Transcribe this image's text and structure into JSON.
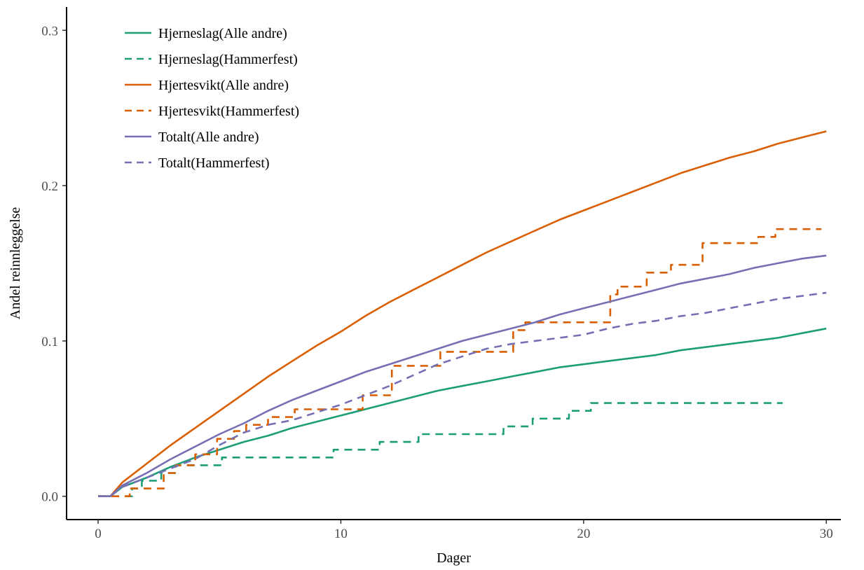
{
  "chart_data": {
    "type": "line",
    "xlabel": "Dager",
    "ylabel": "Andel reinnleggelse",
    "xlim": [
      -1.3,
      30.6
    ],
    "ylim": [
      -0.015,
      0.315
    ],
    "xticks": [
      0,
      10,
      20,
      30
    ],
    "xtick_labels": [
      "0",
      "10",
      "20",
      "30"
    ],
    "yticks": [
      0.0,
      0.1,
      0.2,
      0.3
    ],
    "ytick_labels": [
      "0.0",
      "0.1",
      "0.2",
      "0.3"
    ],
    "grid": false,
    "legend_position": "top-left",
    "series": [
      {
        "name": "Hjerneslag(Alle andre)",
        "color": "#1b9e77",
        "dash": "solid",
        "step": false,
        "points": [
          [
            0,
            0
          ],
          [
            0.5,
            0
          ],
          [
            1,
            0.006
          ],
          [
            2,
            0.012
          ],
          [
            3,
            0.019
          ],
          [
            4,
            0.025
          ],
          [
            5,
            0.03
          ],
          [
            6,
            0.035
          ],
          [
            7,
            0.039
          ],
          [
            8,
            0.044
          ],
          [
            9,
            0.048
          ],
          [
            10,
            0.052
          ],
          [
            11,
            0.056
          ],
          [
            12,
            0.06
          ],
          [
            13,
            0.064
          ],
          [
            14,
            0.068
          ],
          [
            15,
            0.071
          ],
          [
            16,
            0.074
          ],
          [
            17,
            0.077
          ],
          [
            18,
            0.08
          ],
          [
            19,
            0.083
          ],
          [
            20,
            0.085
          ],
          [
            21,
            0.087
          ],
          [
            22,
            0.089
          ],
          [
            23,
            0.091
          ],
          [
            24,
            0.094
          ],
          [
            25,
            0.096
          ],
          [
            26,
            0.098
          ],
          [
            27,
            0.1
          ],
          [
            28,
            0.102
          ],
          [
            29,
            0.105
          ],
          [
            30,
            0.108
          ]
        ]
      },
      {
        "name": "Hjerneslag(Hammerfest)",
        "color": "#1b9e77",
        "dash": "dashed",
        "step": true,
        "points": [
          [
            0,
            0
          ],
          [
            1.4,
            0
          ],
          [
            1.4,
            0.005
          ],
          [
            1.8,
            0.005
          ],
          [
            1.8,
            0.01
          ],
          [
            2.6,
            0.01
          ],
          [
            2.6,
            0.015
          ],
          [
            3.2,
            0.015
          ],
          [
            3.2,
            0.02
          ],
          [
            5.1,
            0.02
          ],
          [
            5.1,
            0.025
          ],
          [
            9.7,
            0.025
          ],
          [
            9.7,
            0.03
          ],
          [
            11.6,
            0.03
          ],
          [
            11.6,
            0.035
          ],
          [
            13.2,
            0.035
          ],
          [
            13.2,
            0.04
          ],
          [
            16.7,
            0.04
          ],
          [
            16.7,
            0.045
          ],
          [
            17.9,
            0.045
          ],
          [
            17.9,
            0.05
          ],
          [
            19.4,
            0.05
          ],
          [
            19.4,
            0.055
          ],
          [
            20.3,
            0.055
          ],
          [
            20.3,
            0.06
          ],
          [
            28.2,
            0.06
          ]
        ]
      },
      {
        "name": "Hjertesvikt(Alle andre)",
        "color": "#d95f02",
        "dash": "solid",
        "step": false,
        "points": [
          [
            0,
            0
          ],
          [
            0.5,
            0
          ],
          [
            1,
            0.009
          ],
          [
            2,
            0.021
          ],
          [
            3,
            0.033
          ],
          [
            4,
            0.044
          ],
          [
            5,
            0.055
          ],
          [
            6,
            0.066
          ],
          [
            7,
            0.077
          ],
          [
            8,
            0.087
          ],
          [
            9,
            0.097
          ],
          [
            10,
            0.106
          ],
          [
            11,
            0.116
          ],
          [
            12,
            0.125
          ],
          [
            13,
            0.133
          ],
          [
            14,
            0.141
          ],
          [
            15,
            0.149
          ],
          [
            16,
            0.157
          ],
          [
            17,
            0.164
          ],
          [
            18,
            0.171
          ],
          [
            19,
            0.178
          ],
          [
            20,
            0.184
          ],
          [
            21,
            0.19
          ],
          [
            22,
            0.196
          ],
          [
            23,
            0.202
          ],
          [
            24,
            0.208
          ],
          [
            25,
            0.213
          ],
          [
            26,
            0.218
          ],
          [
            27,
            0.222
          ],
          [
            28,
            0.227
          ],
          [
            29,
            0.231
          ],
          [
            30,
            0.235
          ]
        ]
      },
      {
        "name": "Hjertesvikt(Hammerfest)",
        "color": "#d95f02",
        "dash": "dashed",
        "step": true,
        "points": [
          [
            0,
            0
          ],
          [
            1.3,
            0
          ],
          [
            1.3,
            0.005
          ],
          [
            2.7,
            0.005
          ],
          [
            2.7,
            0.015
          ],
          [
            3.2,
            0.015
          ],
          [
            3.2,
            0.02
          ],
          [
            4.0,
            0.02
          ],
          [
            4.0,
            0.027
          ],
          [
            4.9,
            0.027
          ],
          [
            4.9,
            0.037
          ],
          [
            5.6,
            0.037
          ],
          [
            5.6,
            0.042
          ],
          [
            6.1,
            0.042
          ],
          [
            6.1,
            0.046
          ],
          [
            7.0,
            0.046
          ],
          [
            7.0,
            0.051
          ],
          [
            8.1,
            0.051
          ],
          [
            8.1,
            0.056
          ],
          [
            10.9,
            0.056
          ],
          [
            10.9,
            0.065
          ],
          [
            11.4,
            0.065
          ],
          [
            11.4,
            0.065
          ],
          [
            12.1,
            0.065
          ],
          [
            12.1,
            0.084
          ],
          [
            14.1,
            0.084
          ],
          [
            14.1,
            0.093
          ],
          [
            17.1,
            0.093
          ],
          [
            17.1,
            0.107
          ],
          [
            17.6,
            0.107
          ],
          [
            17.6,
            0.112
          ],
          [
            21.1,
            0.112
          ],
          [
            21.1,
            0.13
          ],
          [
            21.4,
            0.13
          ],
          [
            21.4,
            0.135
          ],
          [
            22.6,
            0.135
          ],
          [
            22.6,
            0.144
          ],
          [
            23.6,
            0.144
          ],
          [
            23.6,
            0.149
          ],
          [
            24.9,
            0.149
          ],
          [
            24.9,
            0.163
          ],
          [
            27.2,
            0.163
          ],
          [
            27.2,
            0.167
          ],
          [
            27.9,
            0.167
          ],
          [
            27.9,
            0.172
          ],
          [
            29.8,
            0.172
          ]
        ]
      },
      {
        "name": "Totalt(Alle andre)",
        "color": "#7570b3",
        "dash": "solid",
        "step": false,
        "points": [
          [
            0,
            0
          ],
          [
            0.5,
            0
          ],
          [
            1,
            0.007
          ],
          [
            2,
            0.015
          ],
          [
            3,
            0.024
          ],
          [
            4,
            0.032
          ],
          [
            5,
            0.04
          ],
          [
            6,
            0.047
          ],
          [
            7,
            0.055
          ],
          [
            8,
            0.062
          ],
          [
            9,
            0.068
          ],
          [
            10,
            0.074
          ],
          [
            11,
            0.08
          ],
          [
            12,
            0.085
          ],
          [
            13,
            0.09
          ],
          [
            14,
            0.095
          ],
          [
            15,
            0.1
          ],
          [
            16,
            0.104
          ],
          [
            17,
            0.108
          ],
          [
            18,
            0.112
          ],
          [
            19,
            0.117
          ],
          [
            20,
            0.121
          ],
          [
            21,
            0.125
          ],
          [
            22,
            0.129
          ],
          [
            23,
            0.133
          ],
          [
            24,
            0.137
          ],
          [
            25,
            0.14
          ],
          [
            26,
            0.143
          ],
          [
            27,
            0.147
          ],
          [
            28,
            0.15
          ],
          [
            29,
            0.153
          ],
          [
            30,
            0.155
          ]
        ]
      },
      {
        "name": "Totalt(Hammerfest)",
        "color": "#7570b3",
        "dash": "dashed",
        "step": false,
        "points": [
          [
            0,
            0
          ],
          [
            0.5,
            0
          ],
          [
            1,
            0.006
          ],
          [
            2,
            0.012
          ],
          [
            3,
            0.018
          ],
          [
            4,
            0.024
          ],
          [
            5,
            0.033
          ],
          [
            6,
            0.041
          ],
          [
            7,
            0.046
          ],
          [
            8,
            0.049
          ],
          [
            9,
            0.054
          ],
          [
            10,
            0.059
          ],
          [
            11,
            0.065
          ],
          [
            12,
            0.071
          ],
          [
            13,
            0.078
          ],
          [
            14,
            0.085
          ],
          [
            15,
            0.09
          ],
          [
            16,
            0.095
          ],
          [
            17,
            0.098
          ],
          [
            18,
            0.1
          ],
          [
            19,
            0.102
          ],
          [
            20,
            0.104
          ],
          [
            21,
            0.108
          ],
          [
            22,
            0.111
          ],
          [
            23,
            0.113
          ],
          [
            24,
            0.116
          ],
          [
            25,
            0.118
          ],
          [
            26,
            0.121
          ],
          [
            27,
            0.124
          ],
          [
            28,
            0.127
          ],
          [
            29,
            0.129
          ],
          [
            30,
            0.131
          ]
        ]
      }
    ]
  }
}
